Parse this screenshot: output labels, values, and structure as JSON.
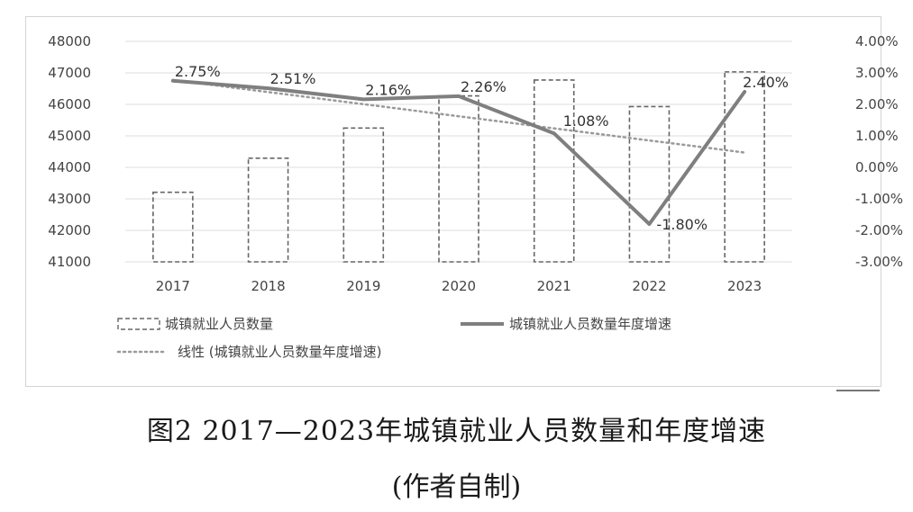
{
  "chart_data": {
    "type": "bar",
    "categories": [
      "2017",
      "2018",
      "2019",
      "2020",
      "2021",
      "2022",
      "2023"
    ],
    "series": [
      {
        "name": "城镇就业人员数量",
        "type": "bar",
        "axis": "left",
        "style": "dashed-outline",
        "values": [
          43208,
          44292,
          45249,
          46271,
          46773,
          45931,
          47032
        ]
      },
      {
        "name": "城镇就业人员数量年度增速",
        "type": "line",
        "axis": "right",
        "values": [
          2.75,
          2.51,
          2.16,
          2.26,
          1.08,
          -1.8,
          2.4
        ],
        "data_labels": [
          "2.75%",
          "2.51%",
          "2.16%",
          "2.26%",
          "1.08%",
          "-1.80%",
          "2.40%"
        ]
      },
      {
        "name": "线性 (城镇就业人员数量年度增速)",
        "type": "trendline",
        "axis": "right",
        "style": "dotted"
      }
    ],
    "y_left": {
      "range": [
        41000,
        48000
      ],
      "ticks": [
        "41000",
        "42000",
        "43000",
        "44000",
        "45000",
        "46000",
        "47000",
        "48000"
      ]
    },
    "y_right": {
      "range": [
        -3,
        4
      ],
      "ticks": [
        "-3.00%",
        "-2.00%",
        "-1.00%",
        "0.00%",
        "1.00%",
        "2.00%",
        "3.00%",
        "4.00%"
      ]
    },
    "grid": true,
    "legend_position": "bottom"
  },
  "caption": "图2 2017—2023年城镇就业人员数量和年度增速",
  "caption_note": "(作者自制)"
}
